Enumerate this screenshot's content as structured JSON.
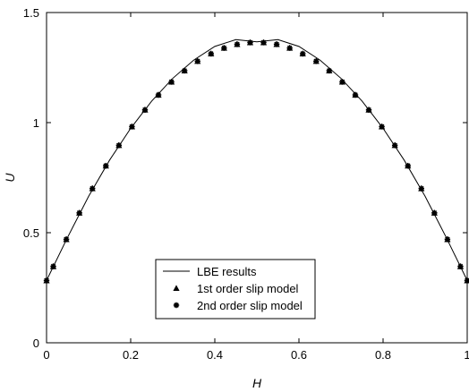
{
  "chart_data": {
    "type": "line",
    "xlabel": "H",
    "ylabel": "U",
    "xlim": [
      0,
      1
    ],
    "ylim": [
      0,
      1.5
    ],
    "xticks": [
      "0",
      "0.2",
      "0.4",
      "0.6",
      "0.8",
      "1"
    ],
    "yticks": [
      "0",
      "0.5",
      "1",
      "1.5"
    ],
    "xtick_values": [
      0,
      0.2,
      0.4,
      0.6,
      0.8,
      1
    ],
    "ytick_values": [
      0,
      0.5,
      1,
      1.5
    ],
    "grid": false,
    "legend_position": "bottom-center",
    "series": [
      {
        "name": "LBE results",
        "style": "line",
        "x": [
          0,
          0.05,
          0.1,
          0.15,
          0.2,
          0.25,
          0.3,
          0.35,
          0.4,
          0.45,
          0.5,
          0.55,
          0.6,
          0.65,
          0.7,
          0.75,
          0.8,
          0.85,
          0.9,
          0.95,
          1
        ],
        "y": [
          0.283,
          0.479,
          0.665,
          0.83,
          0.974,
          1.098,
          1.201,
          1.284,
          1.346,
          1.377,
          1.367,
          1.377,
          1.346,
          1.284,
          1.201,
          1.098,
          0.974,
          0.83,
          0.665,
          0.479,
          0.283
        ]
      },
      {
        "name": "1st order slip model",
        "style": "triangle",
        "x": [
          0,
          0.016,
          0.047,
          0.078,
          0.109,
          0.141,
          0.172,
          0.203,
          0.234,
          0.266,
          0.297,
          0.328,
          0.359,
          0.391,
          0.422,
          0.453,
          0.484,
          0.516,
          0.547,
          0.578,
          0.609,
          0.641,
          0.672,
          0.703,
          0.734,
          0.766,
          0.797,
          0.828,
          0.859,
          0.891,
          0.922,
          0.953,
          0.984,
          1
        ],
        "y": [
          0.283,
          0.347,
          0.47,
          0.59,
          0.701,
          0.804,
          0.897,
          0.982,
          1.058,
          1.126,
          1.185,
          1.236,
          1.279,
          1.313,
          1.339,
          1.356,
          1.364,
          1.364,
          1.356,
          1.339,
          1.313,
          1.279,
          1.236,
          1.185,
          1.126,
          1.058,
          0.982,
          0.897,
          0.804,
          0.701,
          0.59,
          0.47,
          0.347,
          0.283
        ]
      },
      {
        "name": "2nd order slip model",
        "style": "star",
        "x": [
          0,
          0.016,
          0.047,
          0.078,
          0.109,
          0.141,
          0.172,
          0.203,
          0.234,
          0.266,
          0.297,
          0.328,
          0.359,
          0.391,
          0.422,
          0.453,
          0.484,
          0.516,
          0.547,
          0.578,
          0.609,
          0.641,
          0.672,
          0.703,
          0.734,
          0.766,
          0.797,
          0.828,
          0.859,
          0.891,
          0.922,
          0.953,
          0.984,
          1
        ],
        "y": [
          0.283,
          0.347,
          0.47,
          0.59,
          0.701,
          0.804,
          0.897,
          0.982,
          1.058,
          1.126,
          1.185,
          1.236,
          1.279,
          1.313,
          1.339,
          1.356,
          1.364,
          1.364,
          1.356,
          1.339,
          1.313,
          1.279,
          1.236,
          1.185,
          1.126,
          1.058,
          0.982,
          0.897,
          0.804,
          0.701,
          0.59,
          0.47,
          0.347,
          0.283
        ]
      }
    ]
  }
}
